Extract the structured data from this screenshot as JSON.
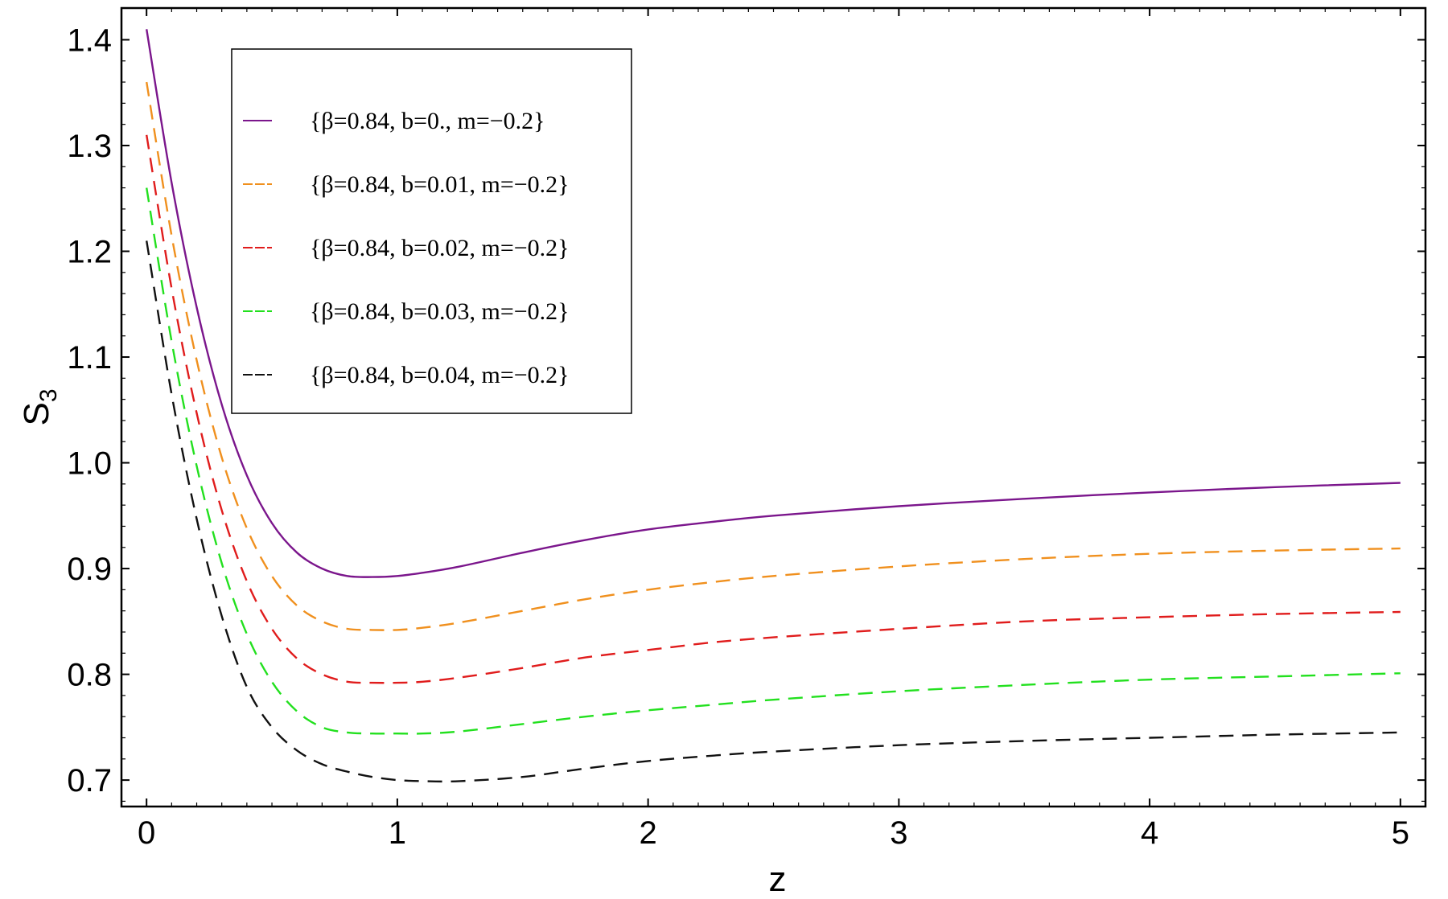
{
  "chart_data": {
    "type": "line",
    "xlabel": "z",
    "ylabel": "S",
    "ylabel_sub": "3",
    "xlim": [
      -0.1,
      5.1
    ],
    "ylim": [
      0.675,
      1.43
    ],
    "xticks": [
      0,
      1,
      2,
      3,
      4,
      5
    ],
    "yticks": [
      0.7,
      0.8,
      0.9,
      1.0,
      1.1,
      1.2,
      1.3,
      1.4
    ],
    "ytick_labels": [
      "0.7",
      "0.8",
      "0.9",
      "1.0",
      "1.1",
      "1.2",
      "1.3",
      "1.4"
    ],
    "grid": false,
    "legend_position": "top-left",
    "x": [
      0,
      0.1,
      0.2,
      0.3,
      0.4,
      0.5,
      0.6,
      0.7,
      0.8,
      0.9,
      1.0,
      1.1,
      1.25,
      1.5,
      1.75,
      2.0,
      2.25,
      2.5,
      3.0,
      3.5,
      4.0,
      4.5,
      5.0
    ],
    "series": [
      {
        "name": "{β=0.84, b=0., m=−0.2}",
        "color": "#7b168c",
        "dash": "solid",
        "values": [
          1.41,
          1.265,
          1.147,
          1.055,
          0.988,
          0.943,
          0.915,
          0.9,
          0.893,
          0.892,
          0.893,
          0.896,
          0.902,
          0.915,
          0.927,
          0.937,
          0.944,
          0.95,
          0.959,
          0.966,
          0.972,
          0.977,
          0.981
        ]
      },
      {
        "name": "{β=0.84, b=0.01, m=−0.2}",
        "color": "#f0901e",
        "dash": "dashed",
        "values": [
          1.36,
          1.215,
          1.097,
          1.005,
          0.938,
          0.893,
          0.865,
          0.85,
          0.843,
          0.842,
          0.842,
          0.844,
          0.849,
          0.86,
          0.871,
          0.88,
          0.887,
          0.893,
          0.902,
          0.909,
          0.914,
          0.917,
          0.919
        ]
      },
      {
        "name": "{β=0.84, b=0.02, m=−0.2}",
        "color": "#e01c1c",
        "dash": "dashed",
        "values": [
          1.31,
          1.165,
          1.047,
          0.955,
          0.888,
          0.843,
          0.815,
          0.8,
          0.793,
          0.792,
          0.792,
          0.793,
          0.797,
          0.806,
          0.816,
          0.823,
          0.83,
          0.835,
          0.843,
          0.85,
          0.854,
          0.857,
          0.859
        ]
      },
      {
        "name": "{β=0.84, b=0.03, m=−0.2}",
        "color": "#22e01e",
        "dash": "dashed",
        "values": [
          1.26,
          1.115,
          0.997,
          0.905,
          0.838,
          0.793,
          0.765,
          0.75,
          0.745,
          0.744,
          0.744,
          0.744,
          0.746,
          0.753,
          0.76,
          0.766,
          0.771,
          0.776,
          0.784,
          0.79,
          0.795,
          0.798,
          0.801
        ]
      },
      {
        "name": "{β=0.84, b=0.04, m=−0.2}",
        "color": "#111111",
        "dash": "dashed",
        "values": [
          1.21,
          1.065,
          0.947,
          0.855,
          0.788,
          0.75,
          0.728,
          0.715,
          0.708,
          0.703,
          0.7,
          0.699,
          0.699,
          0.703,
          0.711,
          0.718,
          0.723,
          0.727,
          0.733,
          0.737,
          0.74,
          0.743,
          0.745
        ]
      }
    ]
  }
}
